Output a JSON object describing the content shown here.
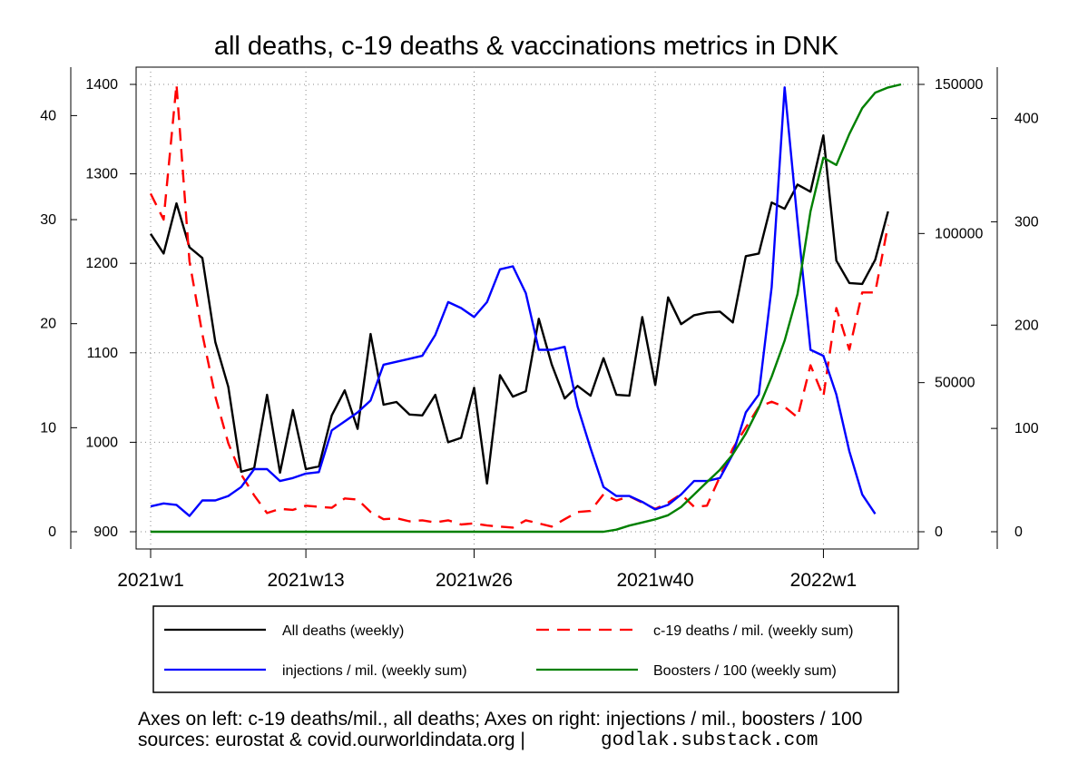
{
  "chart_data": {
    "type": "line",
    "title": "all deaths, c-19 deaths & vaccinations metrics in DNK",
    "x_tick_labels": [
      "2021w1",
      "2021w13",
      "2021w26",
      "2021w40",
      "2022w1"
    ],
    "x_tick_weeks": [
      1,
      13,
      26,
      40,
      53
    ],
    "week_range": [
      1,
      59
    ],
    "axes": {
      "left_outer": {
        "range": [
          0,
          43
        ],
        "ticks": [
          0,
          10,
          20,
          30,
          40
        ],
        "labels": [
          "0",
          "10",
          "20",
          "30",
          "40"
        ]
      },
      "left_inner": {
        "range": [
          900,
          1400
        ],
        "ticks": [
          900,
          1000,
          1100,
          1200,
          1300,
          1400
        ],
        "labels": [
          "900",
          "1000",
          "1100",
          "1200",
          "1300",
          "1400"
        ]
      },
      "right_inner": {
        "range": [
          0,
          150000
        ],
        "ticks": [
          0,
          50000,
          100000,
          150000
        ],
        "labels": [
          "0",
          "50000",
          "100000",
          "150000"
        ]
      },
      "right_outer": {
        "range": [
          0,
          433
        ],
        "ticks": [
          0,
          100,
          200,
          300,
          400
        ],
        "labels": [
          "0",
          "100",
          "200",
          "300",
          "400"
        ]
      }
    },
    "grid": "dotted",
    "series": [
      {
        "name": "All deaths (weekly)",
        "axis": "left_inner",
        "color": "#000000",
        "dash": "solid",
        "values": [
          1233,
          1211,
          1267,
          1218,
          1206,
          1112,
          1062,
          967,
          971,
          1053,
          966,
          1036,
          970,
          973,
          1030,
          1058,
          1015,
          1121,
          1042,
          1045,
          1031,
          1030,
          1053,
          1000,
          1005,
          1061,
          954,
          1075,
          1051,
          1057,
          1138,
          1087,
          1049,
          1063,
          1052,
          1094,
          1053,
          1052,
          1140,
          1064,
          1162,
          1132,
          1142,
          1145,
          1146,
          1134,
          1208,
          1211,
          1268,
          1261,
          1288,
          1280,
          1343,
          1203,
          1178,
          1177,
          1204,
          1258
        ]
      },
      {
        "name": "c-19 deaths / mil. (weekly sum)",
        "axis": "left_outer",
        "color": "#ff0000",
        "dash": "dashed",
        "values": [
          32.5,
          30,
          43,
          26,
          19,
          13,
          8.5,
          5.5,
          3.5,
          1.8,
          2.2,
          2.1,
          2.5,
          2.4,
          2.3,
          3.2,
          3.1,
          1.9,
          1.2,
          1.3,
          1.0,
          1.1,
          0.9,
          1.1,
          0.7,
          0.8,
          0.6,
          0.5,
          0.4,
          1.1,
          0.8,
          0.5,
          1.2,
          1.9,
          2.0,
          3.6,
          3.0,
          3.4,
          2.8,
          2.2,
          2.8,
          3.6,
          2.4,
          2.5,
          5.3,
          8.0,
          10.0,
          12.0,
          12.5,
          12.0,
          11.0,
          16.0,
          13.0,
          21.5,
          17.5,
          23.0,
          23.0,
          29.5
        ]
      },
      {
        "name": "injections / mil. (weekly sum)",
        "axis": "right_inner",
        "color": "#0000ff",
        "dash": "solid",
        "values": [
          8500,
          9500,
          9000,
          5300,
          10500,
          10500,
          12000,
          15000,
          21000,
          21000,
          17000,
          18000,
          19500,
          20000,
          34000,
          37000,
          40000,
          44000,
          56000,
          57000,
          58000,
          59000,
          66000,
          77000,
          75000,
          72000,
          77000,
          88000,
          89000,
          80000,
          61000,
          61000,
          62000,
          42000,
          28000,
          15000,
          12000,
          12000,
          10000,
          7500,
          9000,
          12500,
          17000,
          17000,
          18000,
          26000,
          40000,
          46000,
          82000,
          149000,
          104000,
          61000,
          59000,
          46000,
          27000,
          12500,
          6000
        ]
      },
      {
        "name": "Boosters / 100 (weekly sum)",
        "axis": "right_outer",
        "color": "#008000",
        "dash": "solid",
        "values": [
          0,
          0,
          0,
          0,
          0,
          0,
          0,
          0,
          0,
          0,
          0,
          0,
          0,
          0,
          0,
          0,
          0,
          0,
          0,
          0,
          0,
          0,
          0,
          0,
          0,
          0,
          0,
          0,
          0,
          0,
          0,
          0,
          0,
          0,
          0,
          0,
          2,
          6,
          9,
          12,
          16,
          24,
          36,
          48,
          60,
          75,
          95,
          120,
          150,
          185,
          230,
          310,
          362,
          355,
          385,
          410,
          425,
          430,
          433
        ]
      }
    ],
    "legend": {
      "placement": "bottom",
      "entries": [
        "All deaths (weekly)",
        "c-19 deaths / mil. (weekly sum)",
        "injections / mil. (weekly sum)",
        "Boosters / 100 (weekly sum)"
      ]
    },
    "footer": {
      "line1": "Axes on left: c-19 deaths/mil., all deaths; Axes on right: injections / mil., boosters / 100",
      "line2": "sources: eurostat & covid.ourworldindata.org |",
      "credit": "godlak.substack.com"
    }
  }
}
